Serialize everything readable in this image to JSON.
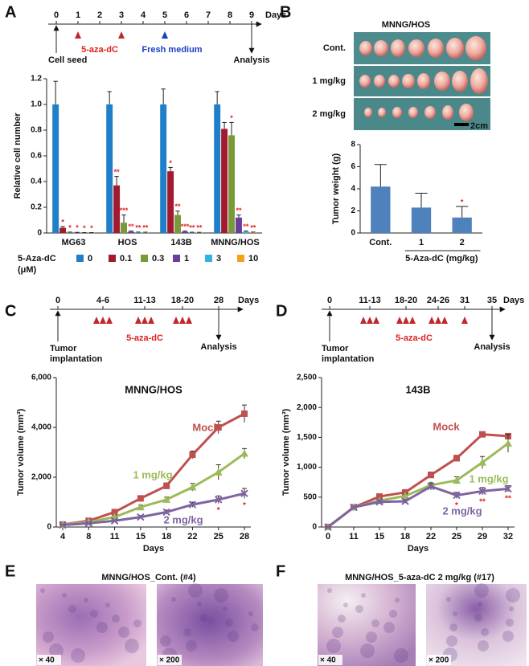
{
  "panel_labels": [
    "A",
    "B",
    "C",
    "D",
    "E",
    "F"
  ],
  "timelines": [
    {
      "ticks": [
        0,
        1,
        2,
        3,
        4,
        5,
        6,
        7,
        8,
        9
      ],
      "unit": "Days",
      "drug": "5-aza-dC",
      "medium": "Fresh medium",
      "start": [
        "Cell seed"
      ],
      "end": "Analysis"
    },
    {
      "ticks": [
        0,
        "4-6",
        "11-13",
        "18-20",
        28
      ],
      "unit": "Days",
      "drug": "5-aza-dC",
      "start": [
        "Tumor",
        "implantation"
      ],
      "end": "Analysis"
    },
    {
      "ticks": [
        0,
        "11-13",
        "18-20",
        "24-26",
        31,
        35
      ],
      "unit": "Days",
      "drug": "5-aza-dC",
      "start": [
        "Tumor",
        "implantation"
      ],
      "end": "Analysis"
    }
  ],
  "photos": {
    "title": "MNNG/HOS",
    "rows": [
      "Cont.",
      "1 mg/kg",
      "2 mg/kg"
    ],
    "scale": "2cm"
  },
  "histology": [
    {
      "title": "MNNG/HOS_Cont.  (#4)",
      "magnifications": [
        "× 40",
        "× 200"
      ]
    },
    {
      "title": "MNNG/HOS_5-aza-dC  2 mg/kg (#17)",
      "magnifications": [
        "× 40",
        "× 200"
      ]
    }
  ],
  "chart_data": [
    {
      "type": "bar",
      "ylabel": "Relative cell number",
      "categories": [
        "MG63",
        "HOS",
        "143B",
        "MNNG/HOS"
      ],
      "legend_title": [
        "5-Aza-dC",
        "(μM)"
      ],
      "series": [
        {
          "name": "0",
          "color": "#1f7fc8",
          "values": [
            1.0,
            1.0,
            1.0,
            1.0
          ],
          "errors": [
            0.18,
            0.1,
            0.12,
            0.1
          ],
          "stars": [
            null,
            null,
            null,
            null
          ]
        },
        {
          "name": "0.1",
          "color": "#a3192d",
          "values": [
            0.04,
            0.37,
            0.48,
            0.81
          ],
          "errors": [
            0.01,
            0.07,
            0.03,
            0.05
          ],
          "stars": [
            "*",
            "**",
            "*",
            null
          ]
        },
        {
          "name": "0.3",
          "color": "#7a9a3a",
          "values": [
            0.005,
            0.08,
            0.14,
            0.76
          ],
          "errors": [
            0.002,
            0.06,
            0.03,
            0.1
          ],
          "stars": [
            "*",
            "***",
            "**",
            "*"
          ]
        },
        {
          "name": "1",
          "color": "#6b3d9a",
          "values": [
            0.003,
            0.01,
            0.01,
            0.12
          ],
          "errors": [
            0.002,
            0.005,
            0.005,
            0.02
          ],
          "stars": [
            "*",
            "**",
            "***",
            "**"
          ]
        },
        {
          "name": "3",
          "color": "#35b2e4",
          "values": [
            0.002,
            0.005,
            0.004,
            0.01
          ],
          "errors": [
            0.001,
            0.002,
            0.002,
            0.005
          ],
          "stars": [
            "*",
            "**",
            "**",
            "**"
          ]
        },
        {
          "name": "10",
          "color": "#f4a21c",
          "values": [
            0.002,
            0.004,
            0.003,
            0.005
          ],
          "errors": [
            0.001,
            0.002,
            0.002,
            0.002
          ],
          "stars": [
            "*",
            "**",
            "**",
            "**"
          ]
        }
      ],
      "ylim": [
        0,
        1.2
      ],
      "yticks": [
        0,
        0.2,
        0.4,
        0.6,
        0.8,
        {
          "value": 1,
          "label": "1.0"
        },
        1.2
      ]
    },
    {
      "type": "bar",
      "ylabel": "Tumor weight (g)",
      "xlabel": "5-Aza-dC (mg/kg)",
      "categories": [
        "Cont.",
        "1",
        "2"
      ],
      "values": [
        4.2,
        2.3,
        1.4
      ],
      "errors": [
        2.0,
        1.3,
        1.0
      ],
      "stars": [
        null,
        null,
        "*"
      ],
      "color": "#4f81bd",
      "ylim": [
        0,
        8
      ],
      "yticks": [
        0,
        2,
        4,
        6,
        8
      ]
    },
    {
      "type": "line",
      "title": "MNNG/HOS",
      "xlabel": "Days",
      "ylabel": "Tumor volume (mm³)",
      "categories": [
        4,
        8,
        11,
        15,
        18,
        22,
        25,
        28
      ],
      "series": [
        {
          "name": "Mock",
          "color": "#c0504d",
          "marker": "square",
          "values": [
            100,
            250,
            600,
            1150,
            1650,
            2900,
            4000,
            4550
          ],
          "errors": [
            20,
            30,
            80,
            100,
            120,
            150,
            250,
            350
          ],
          "stars": [
            null,
            null,
            null,
            null,
            null,
            null,
            null,
            null
          ]
        },
        {
          "name": "1 mg/kg",
          "color": "#9bbb59",
          "marker": "triangle",
          "values": [
            100,
            200,
            400,
            800,
            1100,
            1600,
            2200,
            2950
          ],
          "errors": [
            20,
            30,
            60,
            80,
            100,
            150,
            300,
            200
          ],
          "stars": [
            null,
            null,
            null,
            null,
            null,
            null,
            null,
            null
          ]
        },
        {
          "name": "2 mg/kg",
          "color": "#8064a2",
          "marker": "cross",
          "values": [
            80,
            150,
            250,
            400,
            600,
            900,
            1100,
            1350
          ],
          "errors": [
            15,
            20,
            40,
            60,
            80,
            100,
            150,
            200
          ],
          "stars": [
            null,
            null,
            null,
            null,
            null,
            null,
            "*",
            "*"
          ]
        }
      ],
      "ylim": [
        0,
        6000
      ],
      "yticks": [
        0,
        {
          "value": 2000,
          "label": "2,000"
        },
        {
          "value": 4000,
          "label": "4,000"
        },
        {
          "value": 6000,
          "label": "6,000"
        }
      ]
    },
    {
      "type": "line",
      "title": "143B",
      "xlabel": "Days",
      "ylabel": "Tumor volume (mm³)",
      "categories": [
        0,
        11,
        15,
        18,
        22,
        25,
        29,
        32
      ],
      "series": [
        {
          "name": "Mock",
          "color": "#c0504d",
          "marker": "square",
          "values": [
            0,
            330,
            510,
            580,
            870,
            1150,
            1550,
            1520
          ],
          "errors": [
            0,
            20,
            30,
            40,
            50,
            50,
            40,
            40
          ],
          "stars": [
            null,
            null,
            null,
            null,
            null,
            null,
            null,
            null
          ]
        },
        {
          "name": "1 mg/kg",
          "color": "#9bbb59",
          "marker": "triangle",
          "values": [
            0,
            330,
            440,
            520,
            700,
            780,
            1080,
            1400
          ],
          "errors": [
            0,
            20,
            30,
            30,
            40,
            60,
            100,
            150
          ],
          "stars": [
            null,
            null,
            null,
            null,
            null,
            null,
            null,
            null
          ]
        },
        {
          "name": "2 mg/kg",
          "color": "#8064a2",
          "marker": "cross",
          "values": [
            0,
            330,
            420,
            430,
            680,
            530,
            600,
            640
          ],
          "errors": [
            0,
            20,
            30,
            30,
            60,
            50,
            60,
            50
          ],
          "stars": [
            null,
            null,
            null,
            null,
            null,
            "*",
            "**",
            "**"
          ]
        }
      ],
      "ylim": [
        0,
        2500
      ],
      "yticks": [
        0,
        500,
        {
          "value": 1000,
          "label": "1,000"
        },
        {
          "value": 1500,
          "label": "1,500"
        },
        {
          "value": 2000,
          "label": "2,000"
        },
        {
          "value": 2500,
          "label": "2,500"
        }
      ]
    }
  ]
}
